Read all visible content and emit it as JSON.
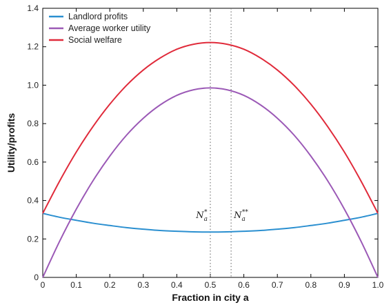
{
  "chart_data": {
    "type": "line",
    "xlabel": "Fraction in city a",
    "ylabel": "Utility/profits",
    "xlim": [
      0,
      1
    ],
    "ylim": [
      0,
      1.4
    ],
    "xticks": [
      "0",
      "0.1",
      "0.2",
      "0.3",
      "0.4",
      "0.5",
      "0.6",
      "0.7",
      "0.8",
      "0.9",
      "1.0"
    ],
    "yticks": [
      "0",
      "0.2",
      "0.4",
      "0.6",
      "0.8",
      "1.0",
      "1.2",
      "1.4"
    ],
    "legend_position": "top-left",
    "x": [
      0,
      0.05,
      0.1,
      0.15,
      0.2,
      0.25,
      0.3,
      0.35,
      0.4,
      0.45,
      0.5,
      0.55,
      0.6,
      0.65,
      0.7,
      0.75,
      0.8,
      0.85,
      0.9,
      0.95,
      1.0
    ],
    "series": [
      {
        "name": "Landlord profits",
        "color": "#2a8fd0",
        "values": [
          0.333,
          0.313,
          0.297,
          0.282,
          0.27,
          0.259,
          0.251,
          0.244,
          0.24,
          0.237,
          0.236,
          0.237,
          0.24,
          0.244,
          0.251,
          0.259,
          0.27,
          0.282,
          0.297,
          0.313,
          0.333
        ]
      },
      {
        "name": "Average worker utility",
        "color": "#9b59b6",
        "values": [
          0.0,
          0.187,
          0.355,
          0.503,
          0.631,
          0.74,
          0.828,
          0.897,
          0.947,
          0.976,
          0.986,
          0.976,
          0.947,
          0.897,
          0.828,
          0.74,
          0.631,
          0.503,
          0.355,
          0.187,
          0.0
        ]
      },
      {
        "name": "Social welfare",
        "color": "#e02a3a",
        "values": [
          0.333,
          0.5,
          0.652,
          0.785,
          0.901,
          0.999,
          1.079,
          1.141,
          1.187,
          1.213,
          1.222,
          1.213,
          1.187,
          1.141,
          1.079,
          0.999,
          0.901,
          0.785,
          0.652,
          0.5,
          0.333
        ]
      }
    ],
    "vlines": [
      {
        "x": 0.5,
        "base": "N",
        "sub": "a",
        "sup": "*"
      },
      {
        "x": 0.562,
        "base": "N",
        "sub": "a",
        "sup": "**"
      }
    ]
  }
}
